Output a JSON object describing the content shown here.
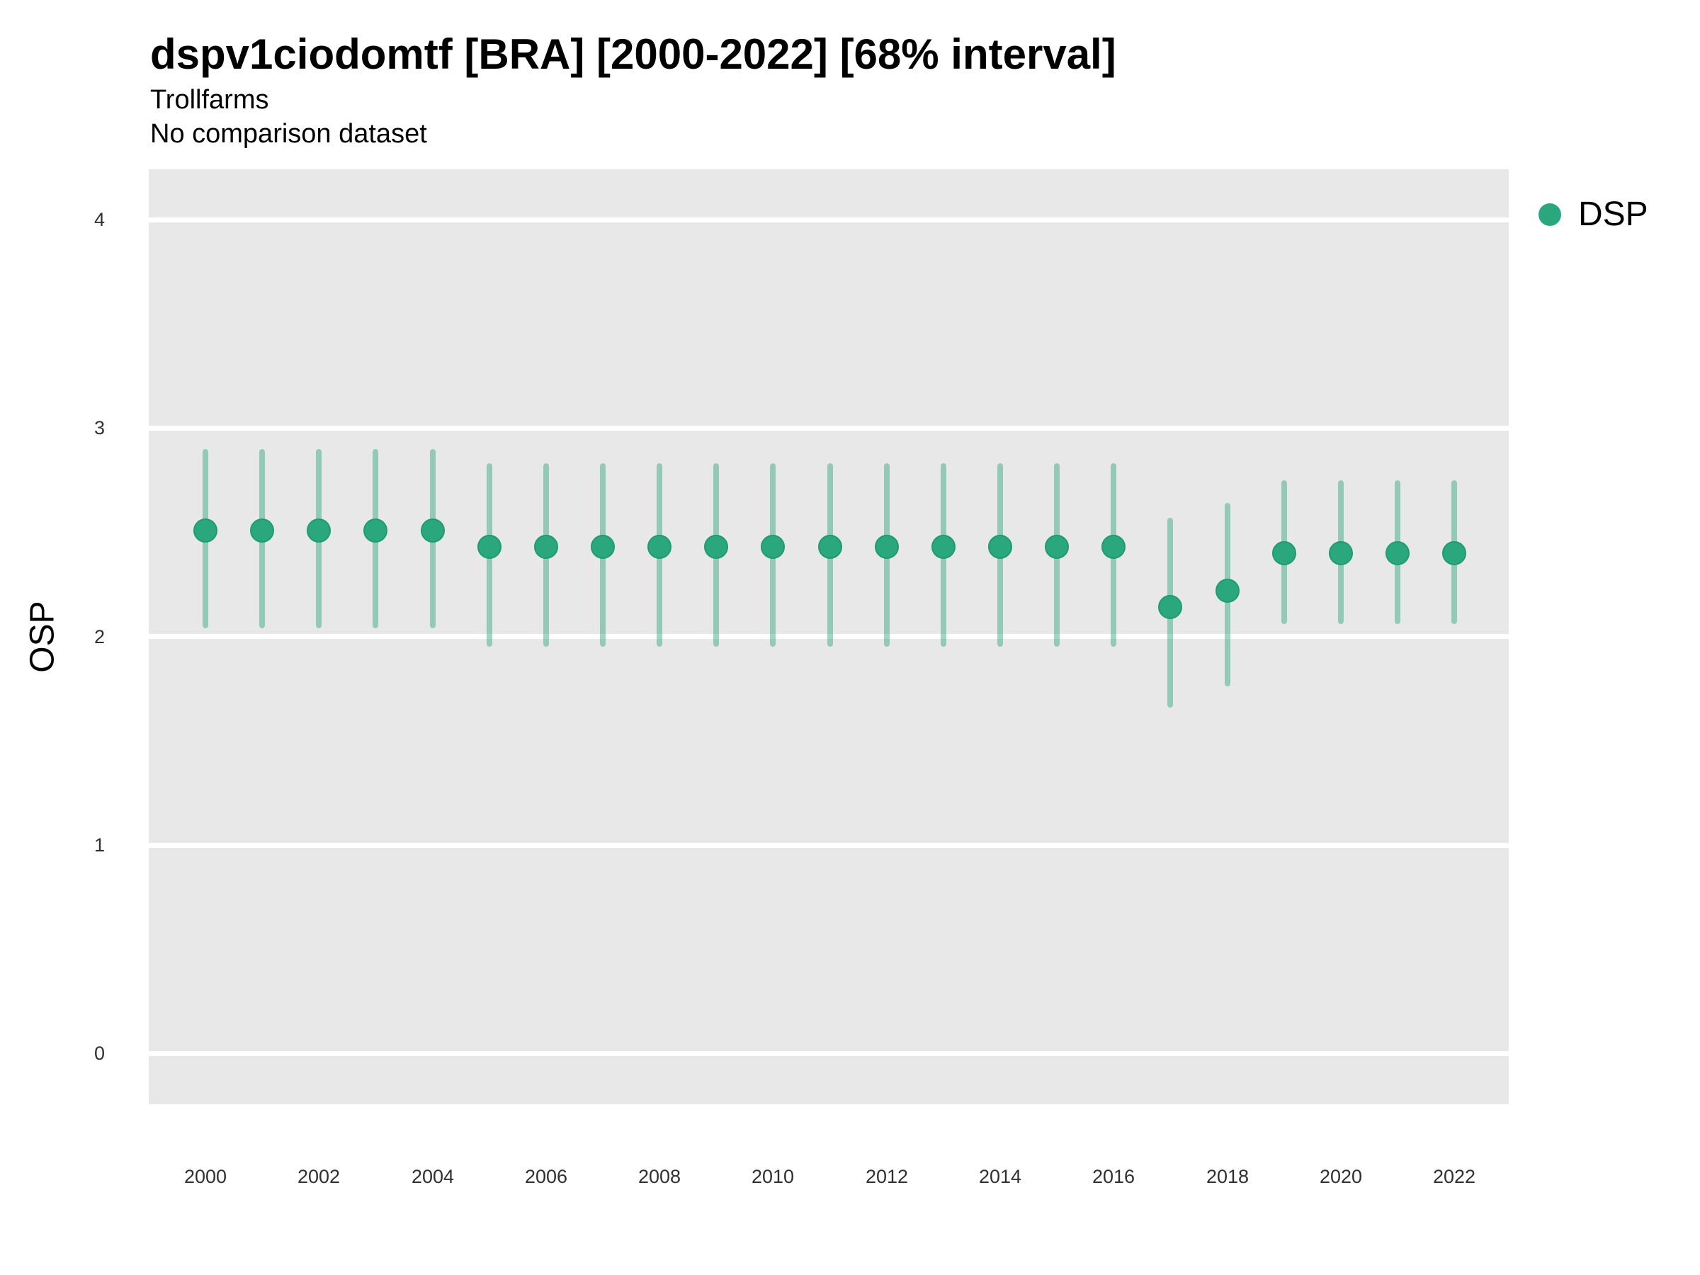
{
  "chart_data": {
    "type": "pointrange-scatter",
    "title": "dspv1ciodomtf [BRA] [2000-2022] [68% interval]",
    "subtitle": "Trollfarms",
    "note": "No comparison dataset",
    "xlabel": "",
    "ylabel": "OSP",
    "interval": "68%",
    "x": [
      2000,
      2001,
      2002,
      2003,
      2004,
      2005,
      2006,
      2007,
      2008,
      2009,
      2010,
      2011,
      2012,
      2013,
      2014,
      2015,
      2016,
      2017,
      2018,
      2019,
      2020,
      2021,
      2022
    ],
    "series": [
      {
        "name": "DSP",
        "mid": [
          2.51,
          2.51,
          2.51,
          2.51,
          2.51,
          2.43,
          2.43,
          2.43,
          2.43,
          2.43,
          2.43,
          2.43,
          2.43,
          2.43,
          2.43,
          2.43,
          2.43,
          2.14,
          2.22,
          2.4,
          2.4,
          2.4,
          2.4
        ],
        "lo": [
          2.04,
          2.04,
          2.04,
          2.04,
          2.04,
          1.95,
          1.95,
          1.95,
          1.95,
          1.95,
          1.95,
          1.95,
          1.95,
          1.95,
          1.95,
          1.95,
          1.95,
          1.66,
          1.76,
          2.06,
          2.06,
          2.06,
          2.06
        ],
        "hi": [
          2.9,
          2.9,
          2.9,
          2.9,
          2.9,
          2.83,
          2.83,
          2.83,
          2.83,
          2.83,
          2.83,
          2.83,
          2.83,
          2.83,
          2.83,
          2.83,
          2.83,
          2.57,
          2.64,
          2.75,
          2.75,
          2.75,
          2.75
        ]
      }
    ],
    "yticks": [
      0,
      1,
      2,
      3,
      4
    ],
    "xticks": [
      2000,
      2002,
      2004,
      2006,
      2008,
      2010,
      2012,
      2014,
      2016,
      2018,
      2020,
      2022
    ],
    "ylim": [
      -0.24,
      4.24
    ],
    "xlim": [
      1999,
      2023
    ],
    "grid": {
      "major": "horizontal-white",
      "minor": "none"
    },
    "legend": {
      "position": "right",
      "entries": [
        {
          "label": "DSP",
          "color": "#2BA77D"
        }
      ]
    }
  },
  "colors": {
    "point": "#2BA77D",
    "point_edge": "#1F9B72",
    "range": "#2BA77D",
    "range_alpha": 0.45,
    "panel_bg": "#E8E8E8",
    "grid": "#FFFFFF",
    "text": "#000000",
    "tick_text": "#303030"
  }
}
